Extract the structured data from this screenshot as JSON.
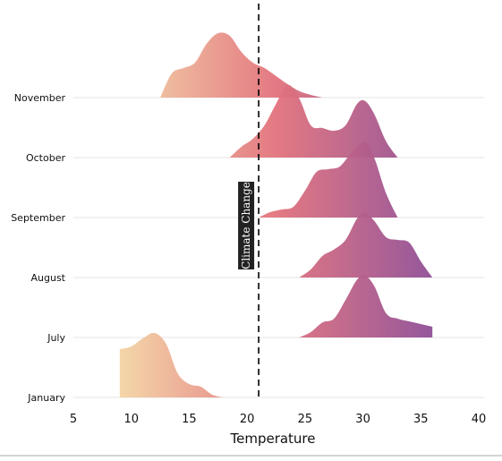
{
  "chart_data": {
    "type": "area",
    "title": "",
    "xlabel": "Temperature",
    "ylabel": "",
    "xlim": [
      5,
      40
    ],
    "x_ticks": [
      5,
      10,
      15,
      20,
      25,
      30,
      35,
      40
    ],
    "categories": [
      "January",
      "July",
      "August",
      "September",
      "October",
      "November"
    ],
    "colors": {
      "gradient_start": "#f3d4a4",
      "gradient_mid": "#e2727c",
      "gradient_end": "#8f4e96",
      "ridge_opacity": 0.95,
      "rule_color": "#000000",
      "annotation_bg": "#222222",
      "grid_color": "#e6e6e6"
    },
    "series": [
      {
        "name": "January",
        "values": [
          [
            9,
            0.9
          ],
          [
            10,
            0.95
          ],
          [
            11,
            1.1
          ],
          [
            12,
            1.2
          ],
          [
            13,
            1.0
          ],
          [
            14,
            0.45
          ],
          [
            15,
            0.25
          ],
          [
            16,
            0.2
          ],
          [
            17,
            0.05
          ],
          [
            18,
            0
          ]
        ]
      },
      {
        "name": "July",
        "values": [
          [
            24.5,
            0
          ],
          [
            25.5,
            0.1
          ],
          [
            26.5,
            0.28
          ],
          [
            27.5,
            0.35
          ],
          [
            28.5,
            0.7
          ],
          [
            29.5,
            1.08
          ],
          [
            30.2,
            1.15
          ],
          [
            31,
            0.95
          ],
          [
            32,
            0.45
          ],
          [
            33,
            0.35
          ],
          [
            34,
            0.3
          ],
          [
            35,
            0.25
          ],
          [
            36,
            0.2
          ]
        ]
      },
      {
        "name": "August",
        "values": [
          [
            24.5,
            0
          ],
          [
            25.5,
            0.15
          ],
          [
            26.5,
            0.4
          ],
          [
            27.5,
            0.52
          ],
          [
            28.5,
            0.7
          ],
          [
            29.5,
            1.1
          ],
          [
            30.2,
            1.2
          ],
          [
            31,
            1.05
          ],
          [
            32,
            0.75
          ],
          [
            33,
            0.7
          ],
          [
            34,
            0.65
          ],
          [
            35,
            0.3
          ],
          [
            36,
            0
          ]
        ]
      },
      {
        "name": "September",
        "values": [
          [
            21,
            0
          ],
          [
            22,
            0.1
          ],
          [
            23,
            0.15
          ],
          [
            24,
            0.2
          ],
          [
            25,
            0.5
          ],
          [
            26,
            0.85
          ],
          [
            27,
            0.9
          ],
          [
            28,
            0.95
          ],
          [
            29,
            1.2
          ],
          [
            30.2,
            1.4
          ],
          [
            31,
            1.1
          ],
          [
            32,
            0.45
          ],
          [
            33,
            0
          ]
        ]
      },
      {
        "name": "October",
        "values": [
          [
            18.5,
            0
          ],
          [
            19.5,
            0.2
          ],
          [
            20.5,
            0.35
          ],
          [
            21.5,
            0.6
          ],
          [
            22.5,
            1.0
          ],
          [
            23.5,
            1.35
          ],
          [
            24.5,
            1.1
          ],
          [
            25.5,
            0.6
          ],
          [
            26.5,
            0.55
          ],
          [
            27.5,
            0.5
          ],
          [
            28.5,
            0.6
          ],
          [
            29.5,
            1.0
          ],
          [
            30.2,
            1.05
          ],
          [
            31,
            0.8
          ],
          [
            32,
            0.3
          ],
          [
            33,
            0
          ]
        ]
      },
      {
        "name": "November",
        "values": [
          [
            12.5,
            0
          ],
          [
            13.5,
            0.45
          ],
          [
            14.5,
            0.55
          ],
          [
            15.5,
            0.65
          ],
          [
            16.5,
            1.0
          ],
          [
            17.5,
            1.2
          ],
          [
            18.5,
            1.15
          ],
          [
            19.5,
            0.85
          ],
          [
            20.5,
            0.65
          ],
          [
            21.5,
            0.55
          ],
          [
            22.5,
            0.4
          ],
          [
            23.5,
            0.25
          ],
          [
            24.5,
            0.12
          ],
          [
            25.5,
            0.05
          ],
          [
            26.5,
            0
          ]
        ]
      }
    ],
    "annotations": [
      {
        "type": "vline",
        "x": 21,
        "label": "Climate Change"
      }
    ]
  }
}
